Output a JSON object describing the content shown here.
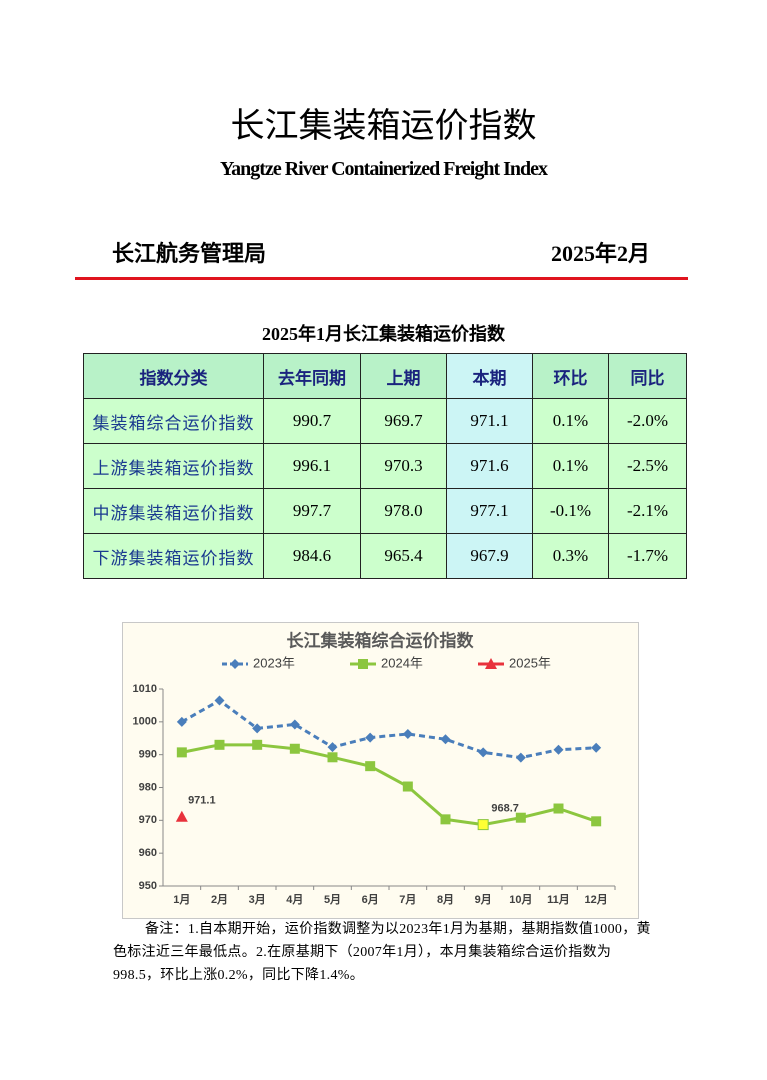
{
  "header": {
    "title": "长江集装箱运价指数",
    "subtitle": "Yangtze River Containerized Freight Index",
    "publisher": "长江航务管理局",
    "date": "2025年2月"
  },
  "table": {
    "title": "2025年1月长江集装箱运价指数",
    "columns": [
      "指数分类",
      "去年同期",
      "上期",
      "本期",
      "环比",
      "同比"
    ],
    "rows": [
      [
        "集装箱综合运价指数",
        "990.7",
        "969.7",
        "971.1",
        "0.1%",
        "-2.0%"
      ],
      [
        "上游集装箱运价指数",
        "996.1",
        "970.3",
        "971.6",
        "0.1%",
        "-2.5%"
      ],
      [
        "中游集装箱运价指数",
        "997.7",
        "978.0",
        "977.1",
        "-0.1%",
        "-2.1%"
      ],
      [
        "下游集装箱运价指数",
        "984.6",
        "965.4",
        "967.9",
        "0.3%",
        "-1.7%"
      ]
    ]
  },
  "chart_data": {
    "type": "line",
    "title": "长江集装箱综合运价指数",
    "categories": [
      "1月",
      "2月",
      "3月",
      "4月",
      "5月",
      "6月",
      "7月",
      "8月",
      "9月",
      "10月",
      "11月",
      "12月"
    ],
    "series": [
      {
        "name": "2023年",
        "color": "#4a7ebb",
        "dashed": true,
        "marker": "diamond",
        "values": [
          1000,
          1006.5,
          998,
          999.2,
          992.3,
          995.2,
          996.3,
          994.7,
          990.7,
          989.1,
          991.5,
          992.1
        ]
      },
      {
        "name": "2024年",
        "color": "#8cc63f",
        "dashed": false,
        "marker": "square",
        "highlight_color": "#ffff33",
        "values": [
          990.7,
          993,
          993,
          991.8,
          989.2,
          986.5,
          980.3,
          970.3,
          968.7,
          970.8,
          973.6,
          969.7
        ],
        "value_labels": [
          null,
          null,
          null,
          null,
          null,
          null,
          null,
          null,
          "968.7",
          null,
          null,
          null
        ]
      },
      {
        "name": "2025年",
        "color": "#e8323c",
        "dashed": false,
        "marker": "triangle",
        "values": [
          971.1,
          null,
          null,
          null,
          null,
          null,
          null,
          null,
          null,
          null,
          null,
          null
        ],
        "value_labels": [
          "971.1",
          null,
          null,
          null,
          null,
          null,
          null,
          null,
          null,
          null,
          null,
          null
        ]
      }
    ],
    "ylim": [
      950,
      1010
    ],
    "yticks": [
      950,
      960,
      970,
      980,
      990,
      1000,
      1010
    ],
    "grid": false,
    "legend": "top"
  },
  "note": "备注：1.自本期开始，运价指数调整为以2023年1月为基期，基期指数值1000，黄色标注近三年最低点。2.在原基期下（2007年1月），本月集装箱综合运价指数为998.5，环比上涨0.2%，同比下降1.4%。"
}
